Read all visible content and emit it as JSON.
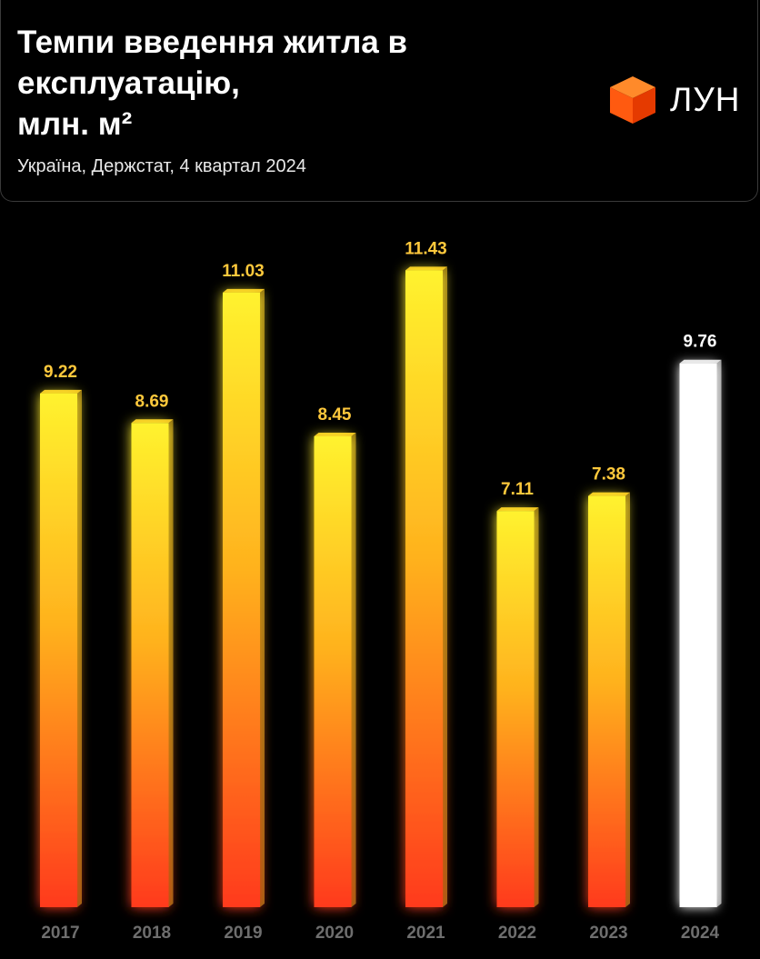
{
  "header": {
    "title_lines": [
      "Темпи введення житла в",
      "експлуатацію,",
      "млн. м²"
    ],
    "subtitle": "Україна, Держстат, 4 квартал 2024"
  },
  "logo": {
    "text": "ЛУН",
    "icon": "orange-cube-icon",
    "colors": {
      "top": "#ff8a2a",
      "left": "#ff5a10",
      "right": "#e53a00"
    }
  },
  "colors": {
    "background": "#000000",
    "bar_top": "#fff22e",
    "bar_mid": "#ffb21e",
    "bar_bottom": "#ff3a1a",
    "bar_side": "#8a6a10",
    "bar_cap": "#f0c020",
    "highlight_bar": "#ffffff",
    "value_label": "#ffc93c",
    "highlight_label": "#ffffff",
    "tick_label": "#6e6e6e"
  },
  "chart_data": {
    "type": "bar",
    "title": "Темпи введення житла в експлуатацію, млн. м²",
    "subtitle": "Україна, Держстат, 4 квартал 2024",
    "categories": [
      "2017",
      "2018",
      "2019",
      "2020",
      "2021",
      "2022",
      "2023",
      "2024"
    ],
    "values": [
      9.22,
      8.69,
      11.03,
      8.45,
      11.43,
      7.11,
      7.38,
      9.76
    ],
    "value_labels": [
      "9.22",
      "8.69",
      "11.03",
      "8.45",
      "11.43",
      "7.11",
      "7.38",
      "9.76"
    ],
    "highlight_category": "2024",
    "xlabel": "",
    "ylabel": "",
    "ylim": [
      0,
      12
    ],
    "grid": false,
    "legend": "none"
  }
}
